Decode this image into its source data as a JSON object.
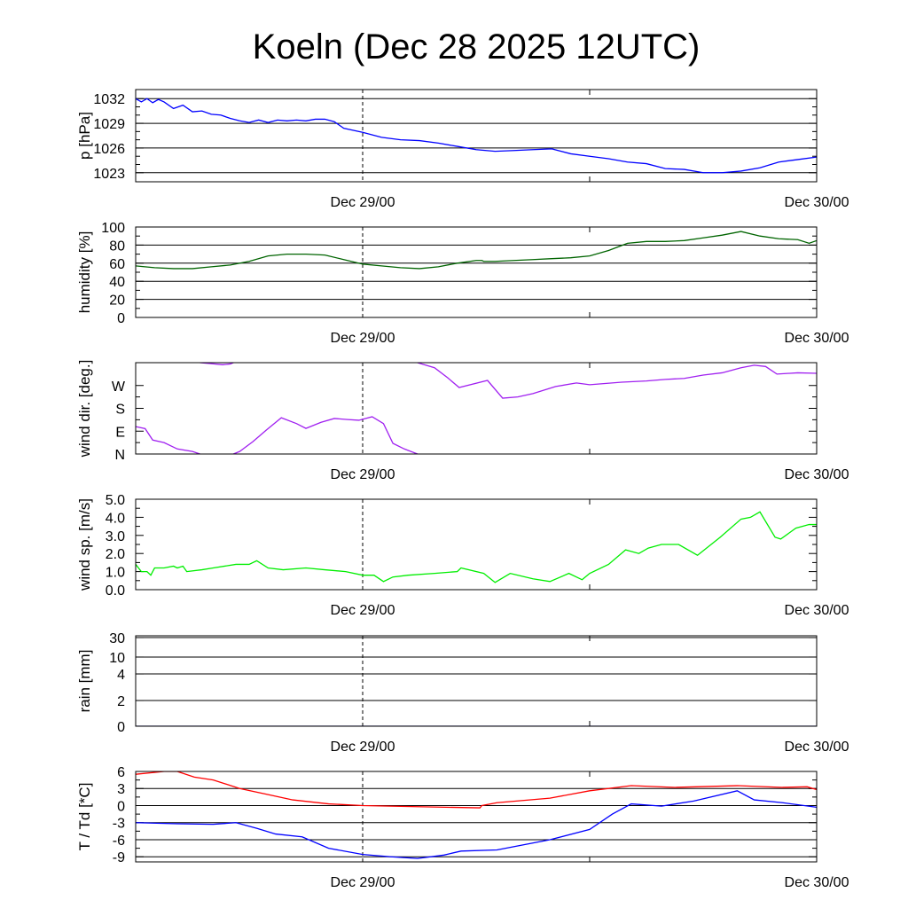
{
  "chart_data": [
    {
      "id": "pressure",
      "type": "line",
      "title": "Koeln (Dec 28 2025 12UTC)",
      "ylabel": "p [hPa]",
      "ylim": [
        1021.9,
        1033.1
      ],
      "yticks": [
        1023,
        1026,
        1029,
        1032
      ],
      "ytick_labels": [
        "1023",
        "1026",
        "1029",
        "1032"
      ],
      "grid": true,
      "xlabels": [
        "Dec 29/00",
        "Dec 30/00"
      ],
      "x_unit": "hours since Dec 28 12UTC",
      "xlim": [
        0,
        36
      ],
      "series": [
        {
          "name": "p",
          "color": "#0000ff",
          "x": [
            0,
            0.3,
            0.6,
            0.9,
            1.2,
            1.5,
            2,
            2.5,
            3,
            3.5,
            4,
            4.5,
            5,
            5.5,
            6,
            6.5,
            7,
            7.5,
            8,
            8.5,
            9,
            9.5,
            10,
            10.5,
            11,
            12,
            13,
            14,
            15,
            16,
            17,
            18,
            19,
            20,
            21,
            22,
            23,
            24,
            25,
            26,
            27,
            28,
            29,
            30,
            31,
            32,
            33,
            34,
            35,
            36
          ],
          "y": [
            1032,
            1031.6,
            1032,
            1031.5,
            1031.9,
            1031.6,
            1030.8,
            1031.2,
            1030.4,
            1030.5,
            1030.1,
            1030,
            1029.6,
            1029.3,
            1029.1,
            1029.4,
            1029.1,
            1029.4,
            1029.3,
            1029.4,
            1029.3,
            1029.5,
            1029.5,
            1029.2,
            1028.4,
            1027.9,
            1027.3,
            1027,
            1026.9,
            1026.6,
            1026.2,
            1025.8,
            1025.6,
            1025.7,
            1025.8,
            1025.9,
            1025.3,
            1025.0,
            1024.7,
            1024.3,
            1024.1,
            1023.5,
            1023.4,
            1023.0,
            1023.0,
            1023.2,
            1023.6,
            1024.3,
            1024.6,
            1024.9
          ]
        }
      ]
    },
    {
      "id": "humidity",
      "type": "line",
      "ylabel": "humidity [%]",
      "ylim": [
        0,
        100
      ],
      "yticks": [
        0,
        20,
        40,
        60,
        80,
        100
      ],
      "ytick_labels": [
        "0",
        "20",
        "40",
        "60",
        "80",
        "100"
      ],
      "grid": true,
      "xlabels": [
        "Dec 29/00",
        "Dec 30/00"
      ],
      "xlim": [
        0,
        36
      ],
      "series": [
        {
          "name": "humidity",
          "color": "#006400",
          "x": [
            0,
            1,
            2,
            3,
            4,
            5,
            6,
            7,
            8,
            9,
            10,
            11,
            12,
            13,
            14,
            15,
            16,
            17,
            18,
            18.3,
            18.4,
            19,
            20,
            21,
            22,
            23,
            24,
            25,
            26,
            27,
            28,
            29,
            30,
            31,
            32,
            33,
            34,
            35,
            35.6,
            36
          ],
          "y": [
            57,
            55,
            54,
            54,
            56,
            58,
            62,
            68,
            70,
            70,
            69,
            64,
            59,
            57,
            55,
            54,
            56,
            60,
            63,
            63,
            62,
            62,
            63,
            64,
            65,
            66,
            68,
            74,
            82,
            84,
            84,
            85,
            88,
            91,
            95,
            90,
            87,
            86,
            82,
            85
          ]
        }
      ]
    },
    {
      "id": "wind_direction",
      "type": "line",
      "ylabel": "wind dir. [deg.]",
      "ylim": [
        0,
        360
      ],
      "yticks": [
        0,
        90,
        180,
        270
      ],
      "ytick_labels": [
        "N",
        "E",
        "S",
        "W"
      ],
      "grid": false,
      "xlabels": [
        "Dec 29/00",
        "Dec 30/00"
      ],
      "xlim": [
        0,
        36
      ],
      "series": [
        {
          "name": "wind direction",
          "color": "#a020f0",
          "x": [
            0,
            0.5,
            0.9,
            1.5,
            2.2,
            3,
            3.4,
            4,
            4.6,
            5,
            5.5,
            6.2,
            6.9,
            7.7,
            8.5,
            9,
            9.8,
            10.5,
            11.2,
            11.8,
            12.5,
            13.1,
            13.6,
            14.2,
            14.9,
            15.8,
            16.5,
            17.1,
            18.6,
            19.4,
            20.2,
            21,
            22.2,
            23.3,
            24,
            25.7,
            27,
            28,
            29,
            30,
            31,
            32,
            32.7,
            33.3,
            33.9,
            35,
            36
          ],
          "y": [
            108,
            100,
            55,
            45,
            20,
            10,
            0,
            356,
            352,
            355,
            10,
            49,
            94,
            143,
            120,
            101,
            125,
            140,
            136,
            133,
            147,
            120,
            42,
            20,
            0,
            340,
            300,
            262,
            290,
            220,
            225,
            238,
            266,
            280,
            273,
            283,
            288,
            294,
            298,
            311,
            320,
            340,
            350,
            345,
            315,
            320,
            318
          ]
        }
      ]
    },
    {
      "id": "wind_speed",
      "type": "line",
      "ylabel": "wind sp. [m/s]",
      "ylim": [
        0,
        5
      ],
      "yticks": [
        0,
        1,
        2,
        3,
        4,
        5
      ],
      "ytick_labels": [
        "0.0",
        "1.0",
        "2.0",
        "3.0",
        "4.0",
        "5.0"
      ],
      "grid": false,
      "xlabels": [
        "Dec 29/00",
        "Dec 30/00"
      ],
      "xlim": [
        0,
        36
      ],
      "series": [
        {
          "name": "wind speed",
          "color": "#00ee00",
          "x": [
            0,
            0.3,
            0.6,
            0.8,
            1,
            1.5,
            2,
            2.2,
            2.5,
            2.7,
            3.5,
            4.1,
            5.3,
            6,
            6.4,
            7,
            7.8,
            9,
            10,
            11.1,
            12,
            12.6,
            13.1,
            13.6,
            14.4,
            15.8,
            17,
            17.2,
            18.4,
            19,
            19.8,
            21,
            21.9,
            22.9,
            23.6,
            24,
            25,
            25.9,
            26.6,
            27.1,
            27.8,
            28.7,
            29.7,
            30.9,
            32,
            32.5,
            33,
            33.8,
            34.1,
            34.9,
            35.6,
            36
          ],
          "y": [
            1.4,
            1.0,
            1.0,
            0.8,
            1.2,
            1.2,
            1.3,
            1.2,
            1.3,
            1.0,
            1.1,
            1.2,
            1.4,
            1.4,
            1.6,
            1.2,
            1.1,
            1.2,
            1.1,
            1.0,
            0.8,
            0.8,
            0.45,
            0.7,
            0.8,
            0.9,
            1.0,
            1.2,
            0.9,
            0.4,
            0.9,
            0.6,
            0.45,
            0.9,
            0.55,
            0.9,
            1.4,
            2.2,
            2.0,
            2.3,
            2.5,
            2.5,
            1.9,
            2.9,
            3.9,
            4.0,
            4.3,
            2.9,
            2.8,
            3.4,
            3.6,
            3.6
          ]
        }
      ]
    },
    {
      "id": "rain",
      "type": "line",
      "ylabel": "rain [mm]",
      "ylim": [
        0,
        32
      ],
      "yticks": [
        0,
        2,
        4,
        10,
        30
      ],
      "ytick_labels": [
        "0",
        "2",
        "4",
        "10",
        "30"
      ],
      "grid": true,
      "xlabels": [
        "Dec 29/00",
        "Dec 30/00"
      ],
      "xlim": [
        0,
        36
      ],
      "series": [
        {
          "name": "rain",
          "color": "#00008b",
          "x": [
            0,
            36
          ],
          "y": [
            0,
            0
          ]
        }
      ]
    },
    {
      "id": "temperature",
      "type": "line",
      "ylabel": "T / Td [*C]",
      "ylim": [
        -9.9,
        6
      ],
      "yticks": [
        -9,
        -6,
        -3,
        0,
        3,
        6
      ],
      "ytick_labels": [
        "-9",
        "-6",
        "-3",
        "0",
        "3",
        "6"
      ],
      "grid": true,
      "xlabels": [
        "Dec 29/00",
        "Dec 30/00"
      ],
      "xlim": [
        0,
        36
      ],
      "series": [
        {
          "name": "T",
          "color": "#ff0000",
          "x": [
            0,
            1.5,
            2.2,
            3.1,
            4.1,
            5.5,
            6.9,
            8.3,
            10.2,
            12,
            14.9,
            18.2,
            18.3,
            19.1,
            21.9,
            24,
            26.2,
            28.5,
            31.8,
            34.2,
            35.5,
            36
          ],
          "y": [
            5.5,
            6,
            6,
            5,
            4.5,
            3,
            2,
            1,
            0.3,
            0,
            -0.2,
            -0.4,
            0,
            0.5,
            1.3,
            2.6,
            3.5,
            3.2,
            3.5,
            3.2,
            3.3,
            2.8
          ]
        },
        {
          "name": "Td",
          "color": "#0000ff",
          "x": [
            0,
            2.2,
            4.1,
            5.3,
            6.4,
            7.4,
            8.8,
            10.2,
            12,
            13.5,
            14.9,
            16.3,
            17.2,
            19.1,
            21.9,
            24,
            25.2,
            26.2,
            27.8,
            29.5,
            31.8,
            32.7,
            34.2,
            36
          ],
          "y": [
            -3,
            -3.2,
            -3.3,
            -3,
            -4,
            -5,
            -5.5,
            -7.5,
            -8.6,
            -9,
            -9.3,
            -8.7,
            -8,
            -7.8,
            -6,
            -4.2,
            -1.5,
            0.3,
            -0.1,
            0.8,
            2.6,
            1,
            0.5,
            -0.3
          ]
        }
      ]
    }
  ]
}
